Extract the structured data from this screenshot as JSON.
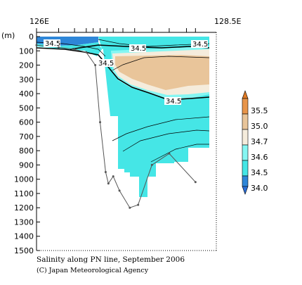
{
  "chart_data": {
    "type": "heatmap",
    "title": "Salinity along PN line, September 2006",
    "credit": "(C) Japan Meteorological Agency",
    "y_unit_label": "(m)",
    "x_axis": {
      "left_label": "126E",
      "right_label": "128.5E",
      "range": [
        126.0,
        128.5
      ]
    },
    "y_axis": {
      "range": [
        0,
        1500
      ],
      "reversed": true,
      "ticks": [
        0,
        100,
        200,
        300,
        400,
        500,
        600,
        700,
        800,
        900,
        1000,
        1100,
        1200,
        1300,
        1400,
        1500
      ]
    },
    "station_longitudes": [
      126.0,
      126.32,
      126.55,
      126.72,
      126.82,
      126.92,
      127.02,
      127.11,
      127.25,
      127.42,
      127.67,
      127.92,
      128.17,
      128.3
    ],
    "bottom_profile": [
      {
        "lon": 126.0,
        "depth": 60
      },
      {
        "lon": 126.32,
        "depth": 75
      },
      {
        "lon": 126.55,
        "depth": 90
      },
      {
        "lon": 126.72,
        "depth": 110
      },
      {
        "lon": 126.85,
        "depth": 200
      },
      {
        "lon": 126.92,
        "depth": 600
      },
      {
        "lon": 127.0,
        "depth": 950
      },
      {
        "lon": 127.04,
        "depth": 1030
      },
      {
        "lon": 127.11,
        "depth": 980
      },
      {
        "lon": 127.2,
        "depth": 1080
      },
      {
        "lon": 127.35,
        "depth": 1200
      },
      {
        "lon": 127.47,
        "depth": 1180
      },
      {
        "lon": 127.67,
        "depth": 900
      },
      {
        "lon": 127.92,
        "depth": 820
      },
      {
        "lon": 128.3,
        "depth": 1020
      }
    ],
    "colorbar": {
      "levels": [
        34.0,
        34.5,
        34.6,
        34.7,
        35.0,
        35.5
      ],
      "colors": [
        "#2e86d8",
        "#45e6e6",
        "#86f6f2",
        "#f5ecdc",
        "#e9c59a",
        "#e8954a"
      ],
      "below_color": "#2a6fd8",
      "above_color": "#e07a24"
    },
    "contour_labels": [
      "34.5",
      "34.5",
      "34.5",
      "34.5",
      "34.5"
    ]
  }
}
